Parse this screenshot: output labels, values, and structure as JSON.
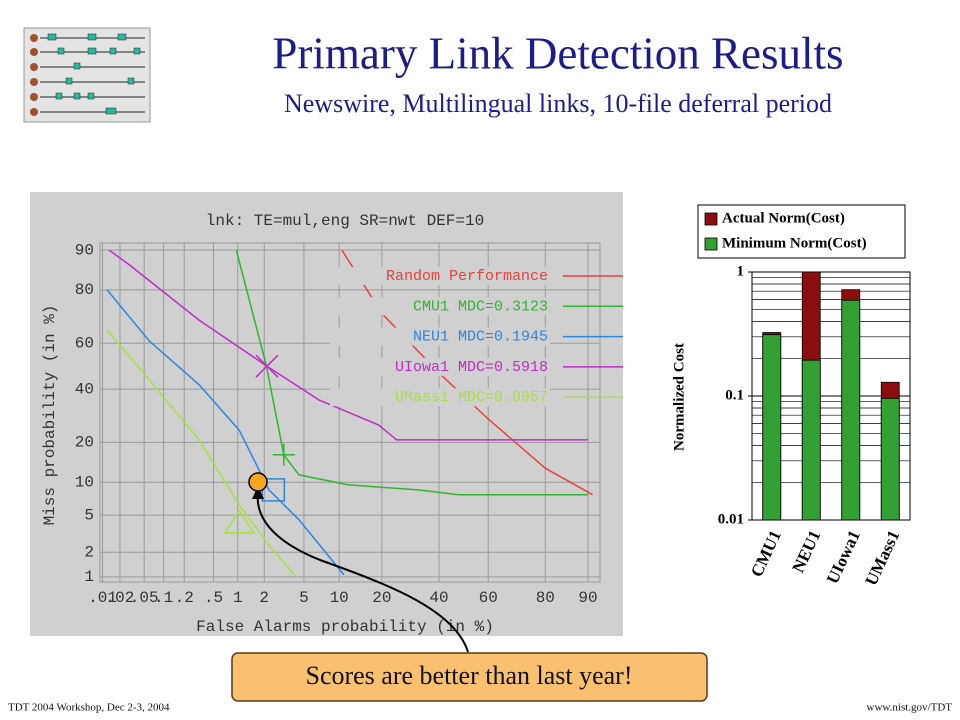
{
  "slide": {
    "title": "Primary Link Detection Results",
    "subtitle": "Newswire, Multilingual links, 10-file deferral period",
    "callout": "Scores are better than last year!",
    "footer_left": "TDT 2004 Workshop, Dec 2-3, 2004",
    "footer_right": "www.nist.gov/TDT"
  },
  "chart_data": [
    {
      "type": "line",
      "title": "lnk: TE=mul,eng SR=nwt DEF=10",
      "x_label": "False Alarms probability (in %)",
      "y_label": "Miss probability (in %)",
      "xscale": "normal-deviate",
      "yscale": "normal-deviate",
      "grid": true,
      "legend": "upper right",
      "xlim": [
        0.009,
        92
      ],
      "ylim": [
        0.86,
        91.3
      ],
      "xticks": [
        {
          "value": 0.01,
          "label": ".01"
        },
        {
          "value": 0.02,
          "label": ".02"
        },
        {
          "value": 0.05,
          "label": ".05"
        },
        {
          "value": 0.1,
          "label": ".1"
        },
        {
          "value": 0.2,
          "label": ".2"
        },
        {
          "value": 0.5,
          "label": ".5"
        },
        1,
        2,
        5,
        10,
        20,
        40,
        60,
        80,
        90
      ],
      "yticks": [
        1,
        2,
        5,
        10,
        20,
        40,
        60,
        80,
        90
      ],
      "series": [
        {
          "name": "Random Performance",
          "color": "#e8413a",
          "x": [
            10.5,
            20,
            40,
            60,
            80,
            90.8
          ],
          "values": [
            90,
            72,
            47,
            28,
            13,
            7.8
          ]
        },
        {
          "name": "CMU1 MDC=0.3123",
          "color": "#2fb52f",
          "marker": "plus",
          "mdc_point": [
            3.2,
            16.4
          ],
          "x": [
            0.96,
            2.1,
            3.2,
            4.5,
            11.8,
            32,
            48,
            90
          ],
          "values": [
            90,
            50.5,
            16.4,
            11.5,
            9.5,
            8.6,
            7.8,
            7.8
          ]
        },
        {
          "name": "NEU1 MDC=0.1945",
          "color": "#2b86e0",
          "marker": "square",
          "mdc_point": [
            2.5,
            8.6
          ],
          "x": [
            0.012,
            0.06,
            0.32,
            1.04,
            2.25,
            4.5,
            10.9
          ],
          "values": [
            80,
            61,
            42,
            24,
            8.6,
            4.5,
            1.06
          ]
        },
        {
          "name": "UIowa1 MDC=0.5918",
          "color": "#c02cc8",
          "marker": "x",
          "mdc_point": [
            2.14,
            50
          ],
          "x": [
            0.013,
            0.029,
            0.32,
            2.14,
            6.8,
            19.1,
            24.5,
            90
          ],
          "values": [
            90,
            86.8,
            69.5,
            50,
            35.5,
            25.8,
            20.8,
            20.8
          ]
        },
        {
          "name": "UMass1 MDC=0.0957",
          "color": "#a6e23c",
          "marker": "triangle",
          "mdc_point": [
            1.04,
            4.3
          ],
          "x": [
            0.012,
            0.06,
            0.32,
            1.04,
            2.25,
            4.2
          ],
          "values": [
            65.5,
            44,
            20.8,
            6.3,
            2.4,
            1
          ]
        }
      ]
    },
    {
      "type": "bar",
      "stacking": "overlap",
      "yscale": "log",
      "grid": true,
      "legend": "top",
      "y_label": "Normalized Cost",
      "categories": [
        "CMU1",
        "NEU1",
        "UIowa1",
        "UMass1"
      ],
      "ylim": [
        0.01,
        1
      ],
      "yticks": [
        0.01,
        0.1,
        1
      ],
      "series": [
        {
          "name": "Actual Norm(Cost)",
          "color": "#8b0d0d",
          "values": [
            0.325,
            1.0,
            0.72,
            0.129
          ]
        },
        {
          "name": "Minimum Norm(Cost)",
          "color": "#32a032",
          "values": [
            0.3123,
            0.1945,
            0.5918,
            0.0957
          ]
        }
      ]
    }
  ]
}
